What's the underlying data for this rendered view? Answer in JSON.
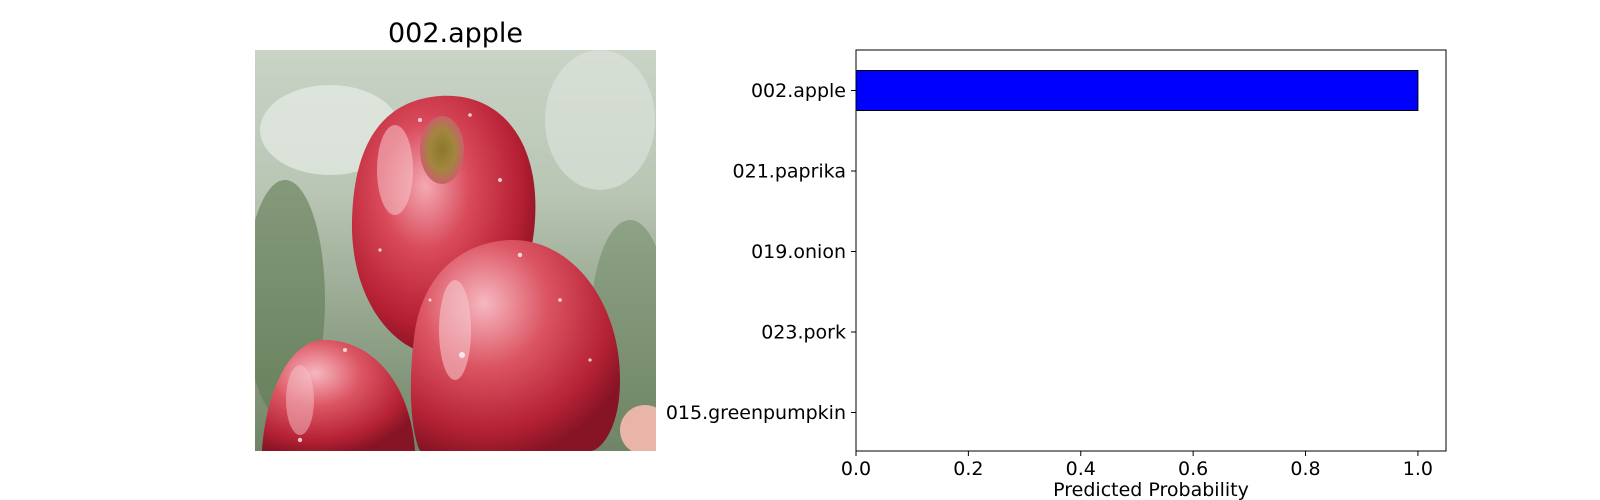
{
  "image_panel": {
    "title": "002.apple",
    "subject": "three-red-apples-photo"
  },
  "chart_data": {
    "type": "bar",
    "orientation": "horizontal",
    "categories": [
      "002.apple",
      "021.paprika",
      "019.onion",
      "023.pork",
      "015.greenpumpkin"
    ],
    "values": [
      1.0,
      0.0,
      0.0,
      0.0,
      0.0
    ],
    "title": "",
    "xlabel": "Predicted Probability",
    "ylabel": "",
    "xlim": [
      0,
      1.05
    ],
    "xticks": [
      0.0,
      0.2,
      0.4,
      0.6,
      0.8,
      1.0
    ],
    "xtick_labels": [
      "0.0",
      "0.2",
      "0.4",
      "0.6",
      "0.8",
      "1.0"
    ],
    "grid": false,
    "bar_color": "#0000ff",
    "edge_color": "#000000"
  }
}
